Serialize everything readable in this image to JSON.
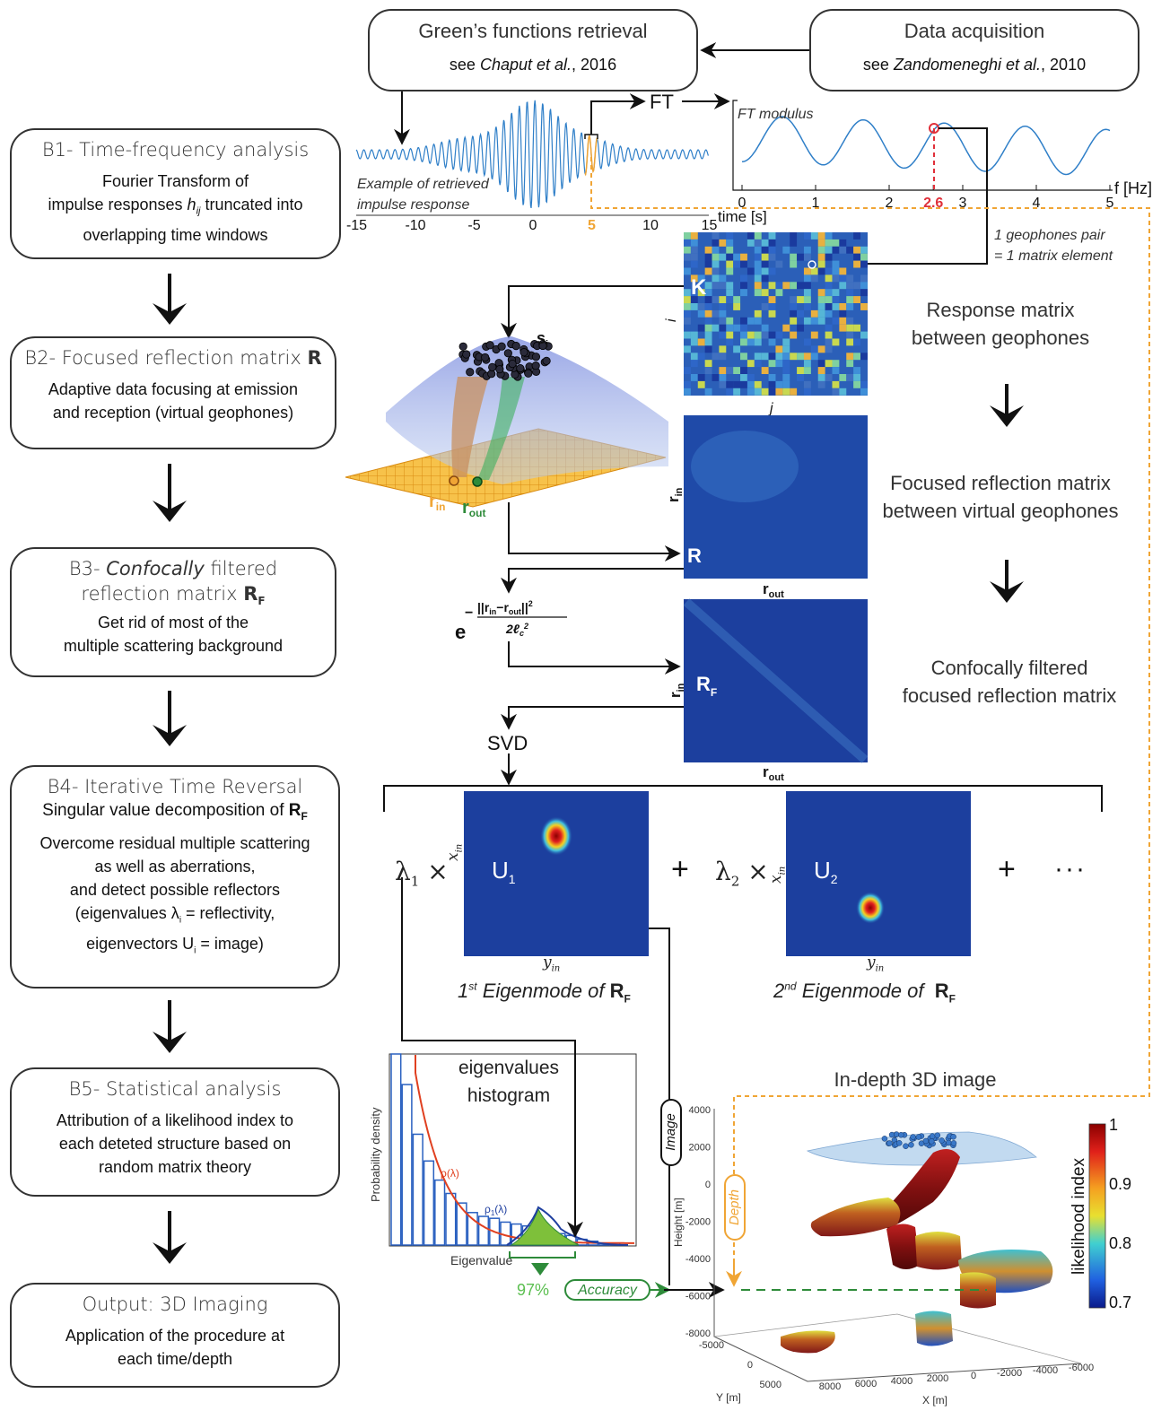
{
  "top": {
    "green": {
      "title": "Green’s functions retrieval",
      "ref_prefix": "see ",
      "ref_author": "Chaput et al.",
      "ref_year": ", 2016"
    },
    "acq": {
      "title": "Data acquisition",
      "ref_prefix": "see ",
      "ref_author": "Zandomeneghi et al.",
      "ref_year": ", 2010"
    }
  },
  "steps": [
    {
      "title": "B1- Time-frequency analysis",
      "desc1": "Fourier Transform of",
      "desc2a": "impulse responses ",
      "desc2var": "h",
      "desc2sub": "ij",
      "desc2b": " truncated into",
      "desc3": "overlapping time windows"
    },
    {
      "title": "B2- Focused reflection matrix ",
      "title_bold": "R",
      "desc1": "Adaptive data focusing at emission",
      "desc2": "and reception (virtual geophones)"
    },
    {
      "title_it": "Confocally",
      "title_pre": "B3- ",
      "title_post": " filtered",
      "title2": "reflection matrix ",
      "title2_bold": "R",
      "title2_sub": "F",
      "desc1": "Get rid of most of the",
      "desc2": "multiple scattering background"
    },
    {
      "title": "B4- Iterative Time Reversal",
      "subtitle": "Singular value decomposition of ",
      "subtitle_bold": "R",
      "subtitle_sub": "F",
      "desc1": "Overcome residual multiple scattering",
      "desc2": "as well as aberrations,",
      "desc3": "and detect possible reflectors",
      "desc4a": "(eigenvalues λ",
      "desc4sub": "i",
      "desc4b": " = reflectivity,",
      "desc5a": "eigenvectors U",
      "desc5sub": "i",
      "desc5b": " = image)"
    },
    {
      "title": "B5- Statistical analysis",
      "desc1": "Attribution of a likelihood index to",
      "desc2": "each deteted structure based on",
      "desc3": "random matrix theory"
    },
    {
      "title": "Output: 3D Imaging",
      "desc1": "Application of the procedure at",
      "desc2": "each time/depth"
    }
  ],
  "signal": {
    "caption1": "Example of retrieved",
    "caption2": "impulse response",
    "xlabel": "time [s]",
    "ticks": [
      "-15",
      "-10",
      "-5",
      "0",
      "5",
      "10",
      "15"
    ],
    "highlight_tick": "5",
    "ft_label": "FT"
  },
  "spectrum": {
    "title": "FT modulus",
    "xlabel": "f [Hz]",
    "ticks": [
      "0",
      "1",
      "2",
      "2.6",
      "3",
      "4",
      "5"
    ],
    "highlight_tick": "2.6",
    "pair_note1": "1 geophones pair",
    "pair_note2": "= 1 matrix element"
  },
  "matrices": {
    "K": {
      "letter": "K",
      "row_label": "i",
      "col_label": "j"
    },
    "R": {
      "letter": "R",
      "row_main": "r",
      "row_sub": "in",
      "col_main": "r",
      "col_sub": "out"
    },
    "RF": {
      "letter": "R",
      "letter_sub": "F",
      "row_main": "r",
      "row_sub": "in",
      "col_main": "r",
      "col_sub": "out"
    }
  },
  "right_labels": {
    "response": [
      "Response matrix",
      "between geophones"
    ],
    "focused": [
      "Focused reflection matrix",
      "between virtual geophones"
    ],
    "confocal": [
      "Confocally filtered",
      "focused reflection matrix"
    ]
  },
  "geo3d": {
    "s_label": "s",
    "s_sub": "i",
    "rin": "r",
    "rin_sub": "in",
    "rout": "r",
    "rout_sub": "out"
  },
  "formula": {
    "base": "e",
    "num": "||r",
    "num_sub_in": "in",
    "num_minus": "−r",
    "num_sub_out": "out",
    "num_end": "||",
    "sup2": "2",
    "den": "2ℓ",
    "den_sub": "c",
    "den_sup": "2",
    "minus": "−"
  },
  "svd": {
    "label": "SVD"
  },
  "eigen": {
    "lambda1": "λ",
    "lambda1_sub": "1",
    "times": "×",
    "u1": "U",
    "u1_sub": "1",
    "lambda2": "λ",
    "lambda2_sub": "2",
    "u2": "U",
    "u2_sub": "2",
    "x_in": "x",
    "x_in_sub": "in",
    "y_in": "y",
    "y_in_sub": "in",
    "plus": "+",
    "ellipsis": "···",
    "mode1": {
      "num": "1",
      "sup": "st",
      "text": " Eigenmode of ",
      "bold": "R",
      "sub": "F"
    },
    "mode2": {
      "num": "2",
      "sup": "nd",
      "text": " Eigenmode of  ",
      "bold": "R",
      "sub": "F"
    }
  },
  "histogram": {
    "title1": "eigenvalues",
    "title2": "histogram",
    "ylabel": "Probability density",
    "xlabel": "Eigenvalue",
    "rho": "ρ(λ)",
    "rho1": "ρ",
    "rho1_sub": "1",
    "rho1_end": "(λ)",
    "bars": [
      1.0,
      0.84,
      0.58,
      0.44,
      0.34,
      0.27,
      0.22,
      0.17,
      0.15,
      0.14,
      0.12,
      0.11,
      0.1,
      0.09,
      0.08,
      0.06,
      0.05,
      0.03,
      0.02,
      0.01,
      0.01
    ],
    "accuracy_value": "97%",
    "accuracy_label": "Accuracy"
  },
  "image3d": {
    "title": "In-depth 3D image",
    "image_tag": "Image",
    "depth_tag": "Depth",
    "zlabel": "Height [m]",
    "zticks": [
      "4000",
      "2000",
      "0",
      "-2000",
      "-4000",
      "-6000",
      "-8000"
    ],
    "ylabel": "Y [m]",
    "yticks": [
      "-5000",
      "0",
      "5000"
    ],
    "xlabel": "X [m]",
    "xticks": [
      "8000",
      "6000",
      "4000",
      "2000",
      "0",
      "-2000",
      "-4000",
      "-6000"
    ],
    "colorbar_label": "likelihood index",
    "colorbar_ticks": [
      "1",
      "0.9",
      "0.8",
      "0.7"
    ]
  },
  "colors": {
    "signal": "#2f7fc8",
    "highlight_orange": "#f0a535",
    "highlight_red": "#e0303a",
    "green": "#2e8b3a",
    "matrix_bg": "#1c3f9e"
  }
}
